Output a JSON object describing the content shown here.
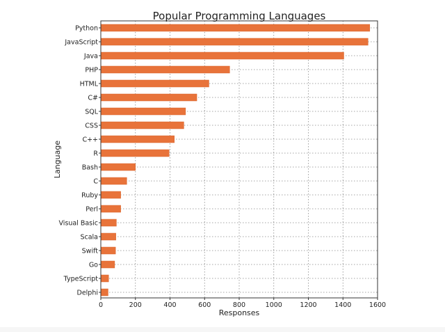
{
  "chart_data": {
    "type": "bar",
    "orientation": "horizontal",
    "title": "Popular Programming Languages",
    "xlabel": "Responses",
    "ylabel": "Language",
    "xlim": [
      0,
      1600
    ],
    "xticks": [
      0,
      200,
      400,
      600,
      800,
      1000,
      1200,
      1400,
      1600
    ],
    "grid": true,
    "bar_color": "#e8733a",
    "categories": [
      "Python",
      "JavaScript",
      "Java",
      "PHP",
      "HTML",
      "C#",
      "SQL",
      "CSS",
      "C++",
      "R",
      "Bash",
      "C",
      "Ruby",
      "Perl",
      "Visual Basic",
      "Scala",
      "Swift",
      "Go",
      "TypeScript",
      "Delphi"
    ],
    "values": [
      1555,
      1545,
      1405,
      745,
      625,
      555,
      490,
      480,
      425,
      395,
      200,
      150,
      115,
      115,
      90,
      87,
      85,
      80,
      45,
      42
    ]
  }
}
